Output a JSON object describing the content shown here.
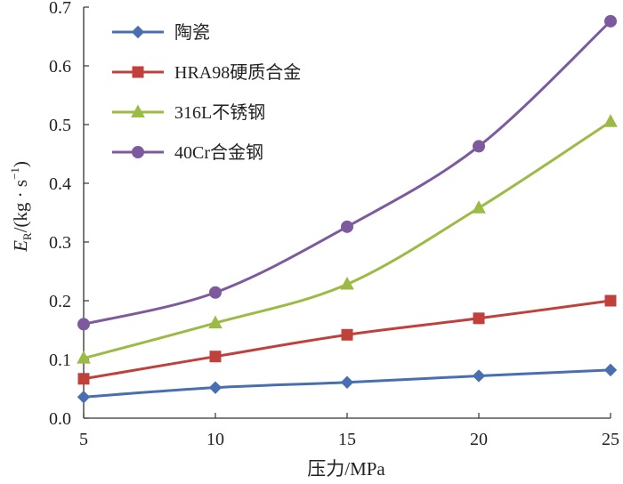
{
  "chart_data": {
    "type": "line",
    "xlabel": "压力/MPa",
    "ylabel_main": "E",
    "ylabel_sub": "R",
    "ylabel_mid": "/(kg · s",
    "ylabel_sup": "−1",
    "ylabel_end": ")",
    "x": [
      5,
      10,
      15,
      20,
      25
    ],
    "xlim": [
      5,
      25
    ],
    "ylim": [
      0,
      0.7
    ],
    "xticks": [
      "5",
      "10",
      "15",
      "20",
      "25"
    ],
    "yticks": [
      "0.0",
      "0.1",
      "0.2",
      "0.3",
      "0.4",
      "0.5",
      "0.6",
      "0.7"
    ],
    "grid": false,
    "legend_position": "top-left",
    "series": [
      {
        "name": "陶瓷",
        "marker": "diamond",
        "color": "#4A6FB0",
        "values": [
          0.036,
          0.052,
          0.061,
          0.072,
          0.082
        ]
      },
      {
        "name": "HRA98硬质合金",
        "marker": "square",
        "color": "#C0403C",
        "values": [
          0.067,
          0.105,
          0.142,
          0.17,
          0.2
        ]
      },
      {
        "name": "316L不锈钢",
        "marker": "triangle",
        "color": "#9BBB45",
        "values": [
          0.102,
          0.162,
          0.228,
          0.358,
          0.505
        ]
      },
      {
        "name": "40Cr合金钢",
        "marker": "circle",
        "color": "#7D5A9E",
        "values": [
          0.16,
          0.214,
          0.326,
          0.463,
          0.676
        ]
      }
    ]
  }
}
